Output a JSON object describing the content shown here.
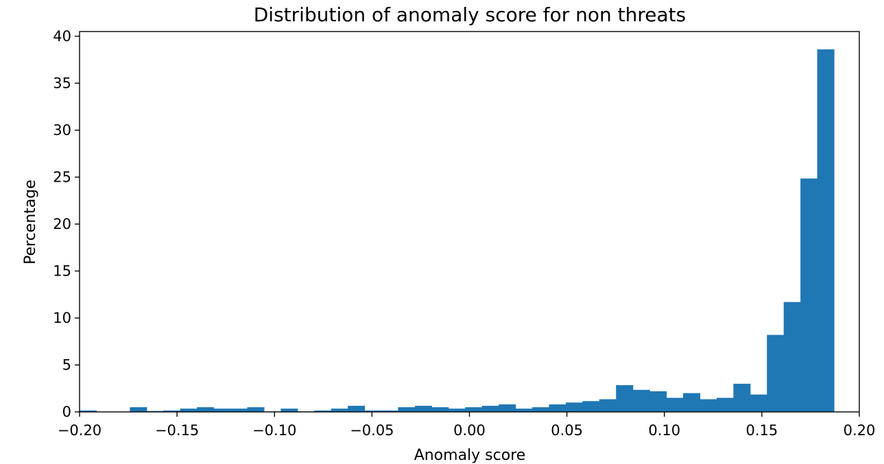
{
  "chart_data": {
    "type": "bar",
    "title": "Distribution of anomaly score for non threats",
    "xlabel": "Anomaly score",
    "ylabel": "Percentage",
    "xlim": [
      -0.2,
      0.2
    ],
    "ylim": [
      0,
      40.5
    ],
    "x_ticks": [
      "−0.20",
      "−0.15",
      "−0.10",
      "−0.05",
      "0.00",
      "0.05",
      "0.10",
      "0.15",
      "0.20"
    ],
    "x_tick_values": [
      -0.2,
      -0.15,
      -0.1,
      -0.05,
      0.0,
      0.05,
      0.1,
      0.15,
      0.2
    ],
    "y_ticks": [
      "0",
      "5",
      "10",
      "15",
      "20",
      "25",
      "30",
      "35",
      "40"
    ],
    "y_tick_values": [
      0,
      5,
      10,
      15,
      20,
      25,
      30,
      35,
      40
    ],
    "grid": false,
    "color": "#1f77b4",
    "bin_edges": [
      -0.2,
      -0.1914,
      -0.1828,
      -0.1742,
      -0.1656,
      -0.157,
      -0.1484,
      -0.1398,
      -0.1312,
      -0.1226,
      -0.114,
      -0.1054,
      -0.0968,
      -0.0882,
      -0.0796,
      -0.071,
      -0.0624,
      -0.0538,
      -0.0452,
      -0.0366,
      -0.028,
      -0.0194,
      -0.0108,
      -0.0022,
      0.0064,
      0.015,
      0.0236,
      0.0322,
      0.0408,
      0.0494,
      0.058,
      0.0666,
      0.0752,
      0.0838,
      0.0924,
      0.101,
      0.1096,
      0.1182,
      0.1268,
      0.1354,
      0.144,
      0.1526,
      0.1612,
      0.1698,
      0.1784,
      0.187
    ],
    "values": [
      0.15,
      0.0,
      0.0,
      0.5,
      0.1,
      0.15,
      0.35,
      0.5,
      0.35,
      0.35,
      0.5,
      0.05,
      0.35,
      0.05,
      0.15,
      0.35,
      0.65,
      0.15,
      0.15,
      0.5,
      0.65,
      0.5,
      0.35,
      0.5,
      0.65,
      0.8,
      0.35,
      0.5,
      0.8,
      1.0,
      1.15,
      1.35,
      2.85,
      2.35,
      2.2,
      1.5,
      2.0,
      1.35,
      1.5,
      3.0,
      1.85,
      8.2,
      11.7,
      24.85,
      38.6
    ]
  }
}
